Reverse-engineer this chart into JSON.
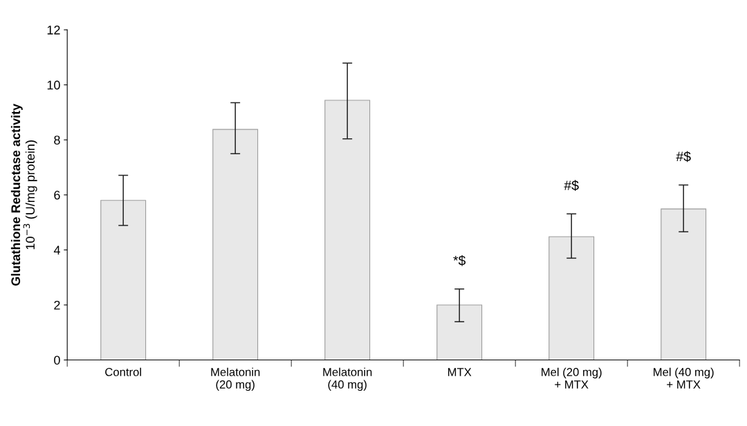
{
  "chart_data": {
    "type": "bar",
    "ylabel": "Glutathione Reductase activity\n10$^{−3}$ (U/mg protein)",
    "categories": [
      "Control",
      "Melatonin\n(20 mg)",
      "Melatonin\n(40 mg)",
      "MTX",
      "Mel (20 mg)\n+ MTX",
      "Mel (40 mg)\n+ MTX"
    ],
    "values": [
      5.8,
      8.38,
      9.44,
      2.0,
      4.48,
      5.49
    ],
    "errors": [
      [
        4.89,
        6.71
      ],
      [
        7.5,
        9.35
      ],
      [
        8.04,
        10.79
      ],
      [
        1.39,
        2.58
      ],
      [
        3.7,
        5.31
      ],
      [
        4.66,
        6.36
      ]
    ],
    "color": "#e8e8e8",
    "ylim": [
      0,
      12
    ],
    "yticks": [
      0,
      2,
      4,
      6,
      8,
      10,
      12
    ],
    "grid": false,
    "legend": false,
    "annotations": [
      "*$",
      "#$",
      "#$"
    ]
  }
}
